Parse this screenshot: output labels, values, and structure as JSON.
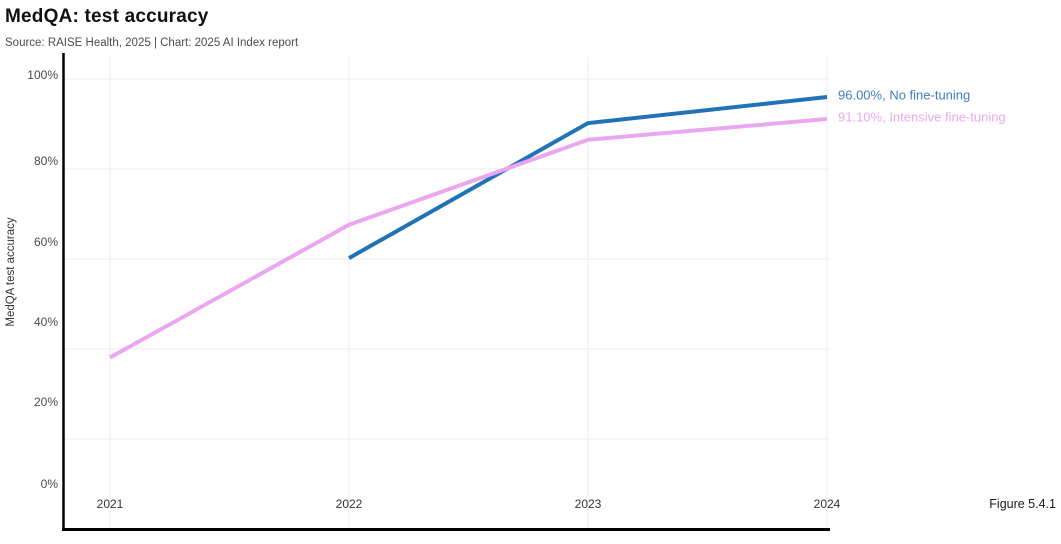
{
  "header": {
    "title": "MedQA: test accuracy",
    "subtitle": "Source: RAISE Health, 2025 | Chart: 2025 AI Index report"
  },
  "figure_label": "Figure 5.4.1",
  "colors": {
    "background": "#ffffff",
    "axis": "#000000",
    "gridline": "#ededed",
    "tick_text": "#4a4a4a",
    "x_tick_text": "#333333",
    "axis_title_text": "#333333"
  },
  "chart_data": {
    "type": "line",
    "title": "MedQA: test accuracy",
    "xlabel": "",
    "ylabel": "MedQA test accuracy",
    "x_categories": [
      "2021",
      "2022",
      "2023",
      "2024"
    ],
    "y_tick_labels": [
      "0%",
      "20%",
      "40%",
      "60%",
      "80%",
      "100%"
    ],
    "y_tick_values": [
      0,
      20,
      40,
      60,
      80,
      100
    ],
    "ylim": [
      0,
      100
    ],
    "grid": true,
    "legend_position": "end-of-line labels, right side",
    "series": [
      {
        "name": "No fine-tuning",
        "values": [
          null,
          60.2,
          90.2,
          96.0
        ],
        "color": "#2173b5",
        "end_label": "96.00%, No fine-tuning",
        "end_label_color": "#3f7dbf"
      },
      {
        "name": "Intensive fine-tuning",
        "values": [
          38.1,
          67.6,
          86.5,
          91.1
        ],
        "color": "#eaa7f0",
        "end_label": "91.10%, Intensive fine-tuning",
        "end_label_color": "#eba9f1"
      }
    ]
  }
}
